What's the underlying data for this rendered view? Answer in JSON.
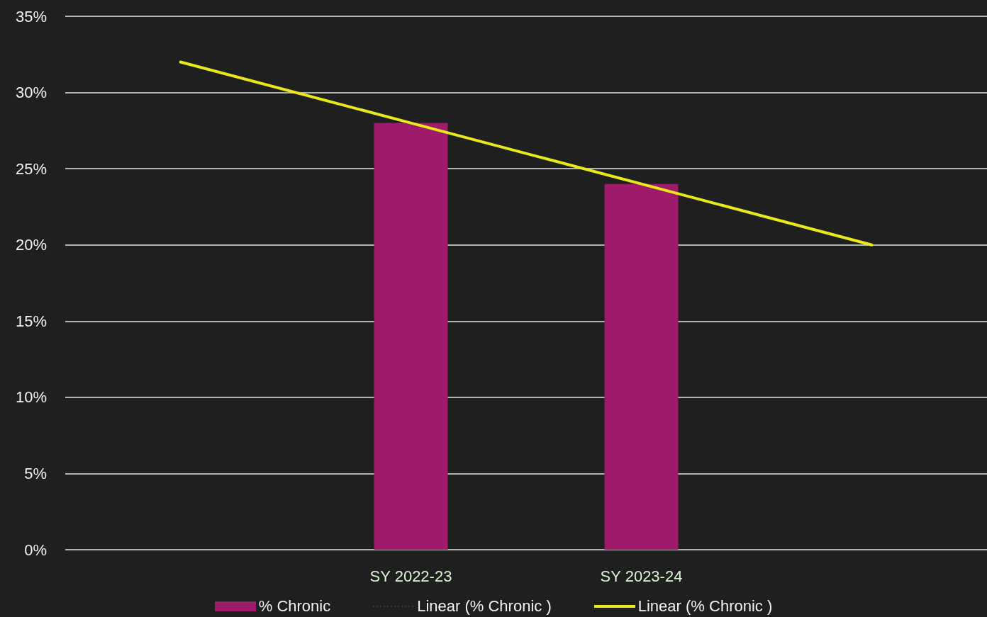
{
  "chart_data": {
    "type": "bar",
    "categories": [
      null,
      "SY 2022-23",
      "SY 2023-24",
      null
    ],
    "series": [
      {
        "name": "% Chronic",
        "color": "#9e1a6a",
        "values": [
          null,
          28,
          24,
          null
        ]
      },
      {
        "name": "Linear (% Chronic )",
        "type": "line",
        "color": "#1f5a3a",
        "line_style": "dotted",
        "values": [
          null,
          null,
          null,
          null
        ]
      },
      {
        "name": "Linear (% Chronic )",
        "type": "line",
        "color": "#e8e81a",
        "line_style": "solid",
        "values": [
          32,
          28,
          24,
          20
        ]
      }
    ],
    "ylim": [
      0,
      35
    ],
    "yticks": [
      {
        "value": 0,
        "label": "0%"
      },
      {
        "value": 5,
        "label": "5%"
      },
      {
        "value": 10,
        "label": "10%"
      },
      {
        "value": 15,
        "label": "15%"
      },
      {
        "value": 20,
        "label": "20%"
      },
      {
        "value": 25,
        "label": "25%"
      },
      {
        "value": 30,
        "label": "30%"
      },
      {
        "value": 35,
        "label": "35%"
      }
    ],
    "grid": "y",
    "legend": "bottom",
    "marker": "none"
  }
}
